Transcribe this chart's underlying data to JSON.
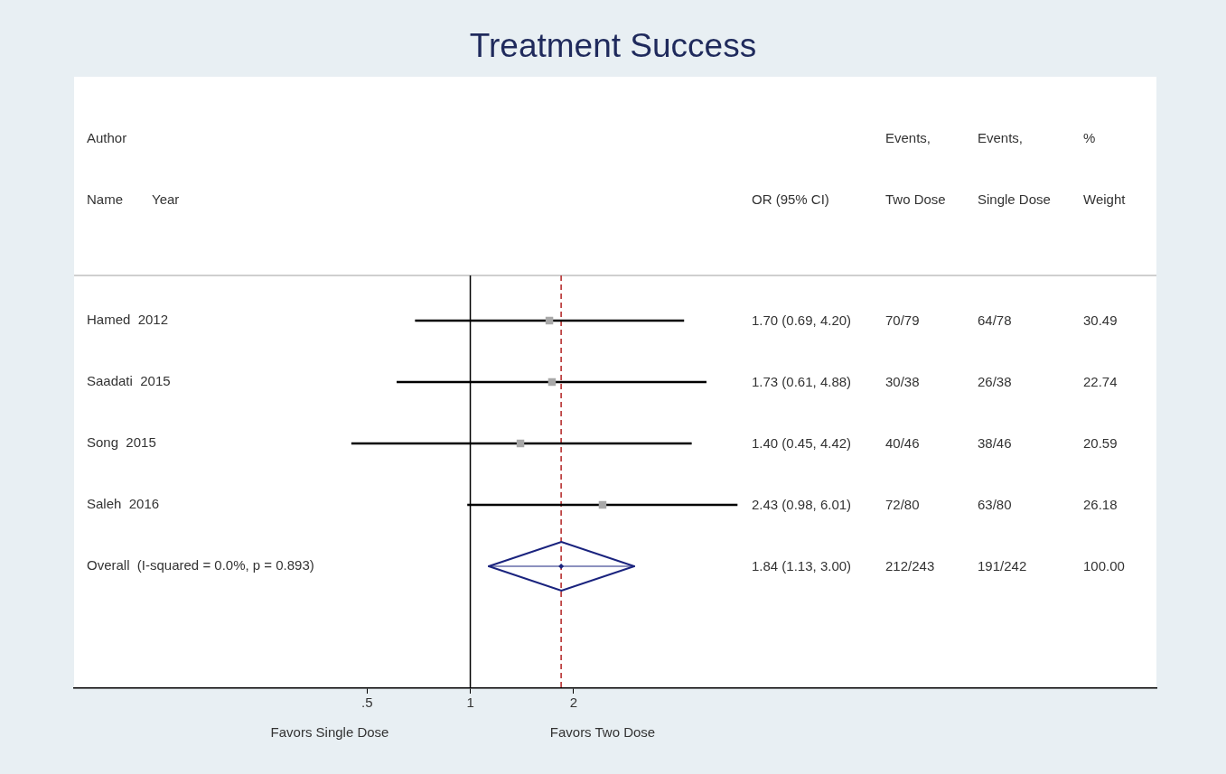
{
  "chart_data": {
    "type": "scatter",
    "title": "Treatment Success",
    "orientation": "horizontal",
    "log": "x",
    "grid": false,
    "categories": [
      "Hamed  2012",
      "Saadati  2015",
      "Song  2015",
      "Saleh  2016",
      "Overall  (I-squared = 0.0%, p = 0.893)"
    ],
    "xlim": [
      0.07,
      100
    ],
    "xticks": [
      {
        "value": 0.5,
        "label": ".5"
      },
      1,
      2
    ],
    "series": [
      {
        "color": "#a8a8a8",
        "marker": "square",
        "values": [
          1.7,
          1.73,
          1.4,
          2.43,
          null
        ],
        "errors": [
          [
            0.69,
            4.2
          ],
          [
            0.61,
            4.88
          ],
          [
            0.45,
            4.42
          ],
          [
            0.98,
            6.01
          ],
          null
        ]
      },
      {
        "color": "#1a237e",
        "marker": "diamond",
        "values": [
          null,
          null,
          null,
          null,
          1.84
        ],
        "errors": [
          null,
          null,
          null,
          null,
          [
            1.13,
            3.0
          ]
        ]
      }
    ],
    "ref_lines": [
      {
        "axis": "x",
        "value": 1,
        "color": "#000000"
      },
      {
        "axis": "x",
        "value": 1.84,
        "color": "#b22222",
        "line_style": "dashed"
      }
    ],
    "annotations": [
      "Author\nName",
      "Year",
      "OR (95% CI)",
      "Events,\nTwo Dose",
      "Events,\nSingle Dose",
      "%\nWeight",
      "1.70 (0.69, 4.20)",
      "70/79",
      "64/78",
      "30.49",
      "1.73 (0.61, 4.88)",
      "30/38",
      "26/38",
      "22.74",
      "1.40 (0.45, 4.42)",
      "40/46",
      "38/46",
      "20.59",
      "2.43 (0.98, 6.01)",
      "72/80",
      "63/80",
      "26.18",
      "1.84 (1.13, 3.00)",
      "212/243",
      "191/242",
      "100.00",
      "Favors Single Dose",
      "Favors Two Dose"
    ]
  }
}
